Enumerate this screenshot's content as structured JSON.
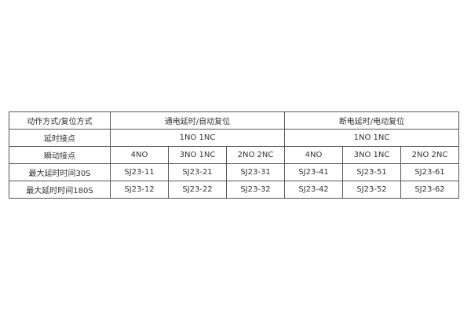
{
  "table": {
    "row_headers": [
      "动作方式/复位方式",
      "延时接点",
      "瞬动接点",
      "最大延时时间30S",
      "最大延时时间180S"
    ],
    "modes": [
      "通电延时/自动复位",
      "断电延时/电动复位"
    ],
    "delay_contacts": [
      "1NO 1NC",
      "1NO 1NC"
    ],
    "instant_contacts": [
      "4NO",
      "3NO 1NC",
      "2NO 2NC",
      "4NO",
      "3NO 1NC",
      "2NO 2NC"
    ],
    "row_30s": [
      "SJ23-11",
      "SJ23-21",
      "SJ23-31",
      "SJ23-41",
      "SJ23-51",
      "SJ23-61"
    ],
    "row_180s": [
      "SJ23-12",
      "SJ23-22",
      "SJ23-32",
      "SJ23-42",
      "SJ23-52",
      "SJ23-62"
    ]
  }
}
